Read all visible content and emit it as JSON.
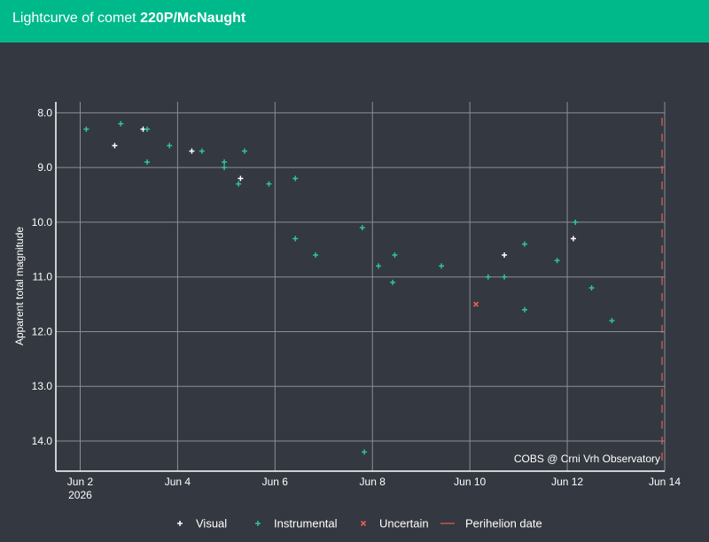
{
  "header": {
    "title_prefix": "Lightcurve of comet ",
    "title_comet": "220P/McNaught"
  },
  "chart_data": {
    "type": "scatter",
    "ylabel": "Apparent total magnitude",
    "xlabel": "",
    "x_ticks": [
      "Jun 2",
      "Jun 4",
      "Jun 6",
      "Jun 8",
      "Jun 10",
      "Jun 12",
      "Jun 14"
    ],
    "x_tick_year": "2026",
    "x_tick_dates": [
      "2026-06-02",
      "2026-06-04",
      "2026-06-06",
      "2026-06-08",
      "2026-06-10",
      "2026-06-12",
      "2026-06-14"
    ],
    "x_range": [
      "2026-06-01T12:00",
      "2026-06-14T00:00"
    ],
    "y_ticks": [
      "8.0",
      "9.0",
      "10.0",
      "11.0",
      "12.0",
      "13.0",
      "14.0"
    ],
    "y_range": [
      14.55,
      7.8
    ],
    "y_inverted": true,
    "grid": true,
    "legend_position": "bottom",
    "legend": [
      "Visual",
      "Instrumental",
      "Uncertain",
      "Perihelion date"
    ],
    "annotation": "COBS @ Crni Vrh Observatory",
    "colors": {
      "visual": "#ffffff",
      "instrumental": "#2ec4a0",
      "uncertain": "#e8604c",
      "perihelion": "#e8604c"
    },
    "series": [
      {
        "name": "Visual",
        "marker": "plus",
        "points": [
          {
            "x": "2026-06-02T17:00",
            "y": 8.6
          },
          {
            "x": "2026-06-03T07:00",
            "y": 8.3
          },
          {
            "x": "2026-06-04T07:00",
            "y": 8.7
          },
          {
            "x": "2026-06-05T07:00",
            "y": 9.2
          },
          {
            "x": "2026-06-10T17:00",
            "y": 10.6
          },
          {
            "x": "2026-06-12T03:00",
            "y": 10.3
          }
        ]
      },
      {
        "name": "Instrumental",
        "marker": "plus",
        "points": [
          {
            "x": "2026-06-02T03:00",
            "y": 8.3
          },
          {
            "x": "2026-06-02T20:00",
            "y": 8.2
          },
          {
            "x": "2026-06-03T09:00",
            "y": 8.3
          },
          {
            "x": "2026-06-03T09:00",
            "y": 8.9
          },
          {
            "x": "2026-06-03T20:00",
            "y": 8.6
          },
          {
            "x": "2026-06-04T12:00",
            "y": 8.7
          },
          {
            "x": "2026-06-04T23:00",
            "y": 8.9
          },
          {
            "x": "2026-06-04T23:00",
            "y": 9.0
          },
          {
            "x": "2026-06-05T06:00",
            "y": 9.3
          },
          {
            "x": "2026-06-05T09:00",
            "y": 8.7
          },
          {
            "x": "2026-06-05T21:00",
            "y": 9.3
          },
          {
            "x": "2026-06-06T10:00",
            "y": 9.2
          },
          {
            "x": "2026-06-06T10:00",
            "y": 10.3
          },
          {
            "x": "2026-06-06T20:00",
            "y": 10.6
          },
          {
            "x": "2026-06-07T19:00",
            "y": 10.1
          },
          {
            "x": "2026-06-07T20:00",
            "y": 14.2
          },
          {
            "x": "2026-06-08T03:00",
            "y": 10.8
          },
          {
            "x": "2026-06-08T10:00",
            "y": 11.1
          },
          {
            "x": "2026-06-08T11:00",
            "y": 10.6
          },
          {
            "x": "2026-06-09T10:00",
            "y": 10.8
          },
          {
            "x": "2026-06-10T09:00",
            "y": 11.0
          },
          {
            "x": "2026-06-10T17:00",
            "y": 11.0
          },
          {
            "x": "2026-06-11T03:00",
            "y": 10.4
          },
          {
            "x": "2026-06-11T03:00",
            "y": 11.6
          },
          {
            "x": "2026-06-11T19:00",
            "y": 10.7
          },
          {
            "x": "2026-06-12T04:00",
            "y": 10.0
          },
          {
            "x": "2026-06-12T12:00",
            "y": 11.2
          },
          {
            "x": "2026-06-12T22:00",
            "y": 11.8
          }
        ]
      },
      {
        "name": "Uncertain",
        "marker": "x",
        "points": [
          {
            "x": "2026-06-10T03:00",
            "y": 11.5
          }
        ]
      }
    ],
    "perihelion_date": "2026-06-14T00:00"
  }
}
